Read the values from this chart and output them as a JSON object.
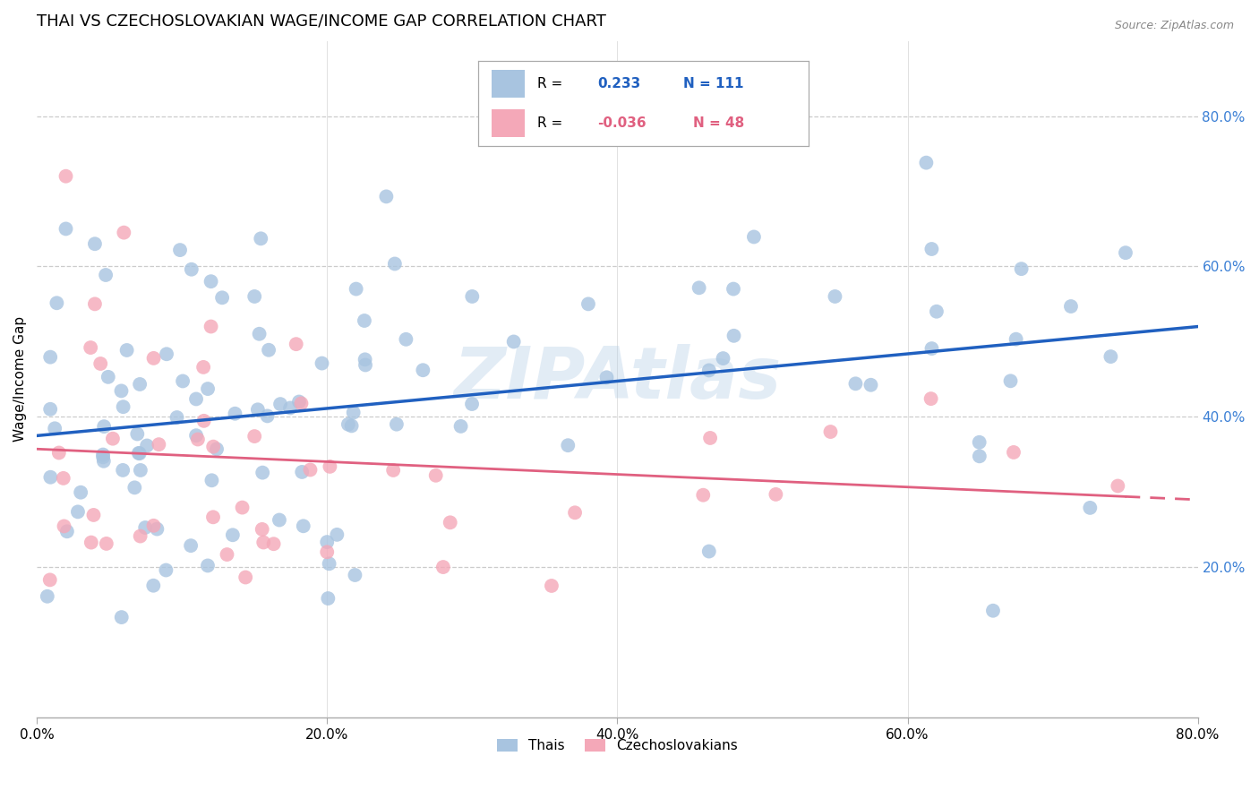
{
  "title": "THAI VS CZECHOSLOVAKIAN WAGE/INCOME GAP CORRELATION CHART",
  "source": "Source: ZipAtlas.com",
  "ylabel": "Wage/Income Gap",
  "xlim": [
    0.0,
    0.8
  ],
  "ylim": [
    0.0,
    0.9
  ],
  "xticks": [
    0.0,
    0.2,
    0.4,
    0.6,
    0.8
  ],
  "yticks": [
    0.2,
    0.4,
    0.6,
    0.8
  ],
  "xtick_labels": [
    "0.0%",
    "20.0%",
    "40.0%",
    "60.0%",
    "80.0%"
  ],
  "ytick_labels": [
    "20.0%",
    "40.0%",
    "60.0%",
    "80.0%"
  ],
  "watermark": "ZIPAtlas",
  "thai_color": "#a8c4e0",
  "czech_color": "#f4a8b8",
  "thai_line_color": "#2060c0",
  "czech_line_color": "#e06080",
  "thai_R": 0.233,
  "thai_N": 111,
  "czech_R": -0.036,
  "czech_N": 48,
  "background_color": "#ffffff",
  "grid_color": "#cccccc",
  "title_fontsize": 13,
  "axis_label_fontsize": 11,
  "tick_fontsize": 11
}
